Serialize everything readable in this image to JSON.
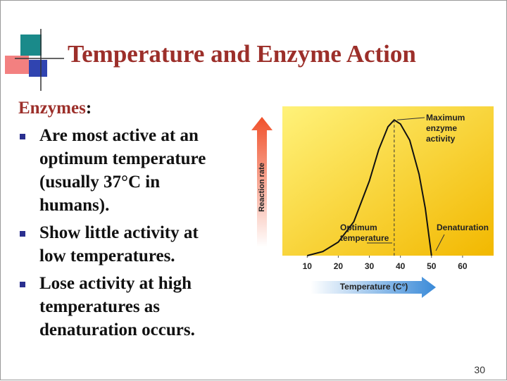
{
  "slide": {
    "title": "Temperature and Enzyme Action",
    "heading": {
      "word": "Enzymes",
      "punct": ":"
    },
    "bullets": [
      [
        "Are most active at an",
        "optimum temperature",
        "(usually  37°C in",
        "humans)."
      ],
      [
        "Show little activity at",
        "low temperatures."
      ],
      [
        "Lose activity at high",
        "temperatures as",
        "denaturation occurs."
      ]
    ],
    "page_number": "30"
  },
  "chart_data": {
    "type": "line",
    "x": [
      10,
      15,
      20,
      25,
      30,
      33,
      36,
      38,
      40,
      43,
      46,
      48,
      50
    ],
    "values": [
      0,
      3,
      10,
      25,
      55,
      78,
      95,
      100,
      97,
      85,
      60,
      35,
      0
    ],
    "color": "#111111",
    "xlim": [
      2,
      70
    ],
    "ylim": [
      0,
      110
    ],
    "xticks": [
      10,
      20,
      30,
      40,
      50,
      60
    ],
    "xlabel": "Temperature (C°)",
    "ylabel": "Reaction rate",
    "annotations": [
      [
        "Maximum",
        "enzyme",
        "activity"
      ],
      [
        "Optimum",
        "temperature"
      ],
      [
        "Denaturation"
      ]
    ]
  }
}
